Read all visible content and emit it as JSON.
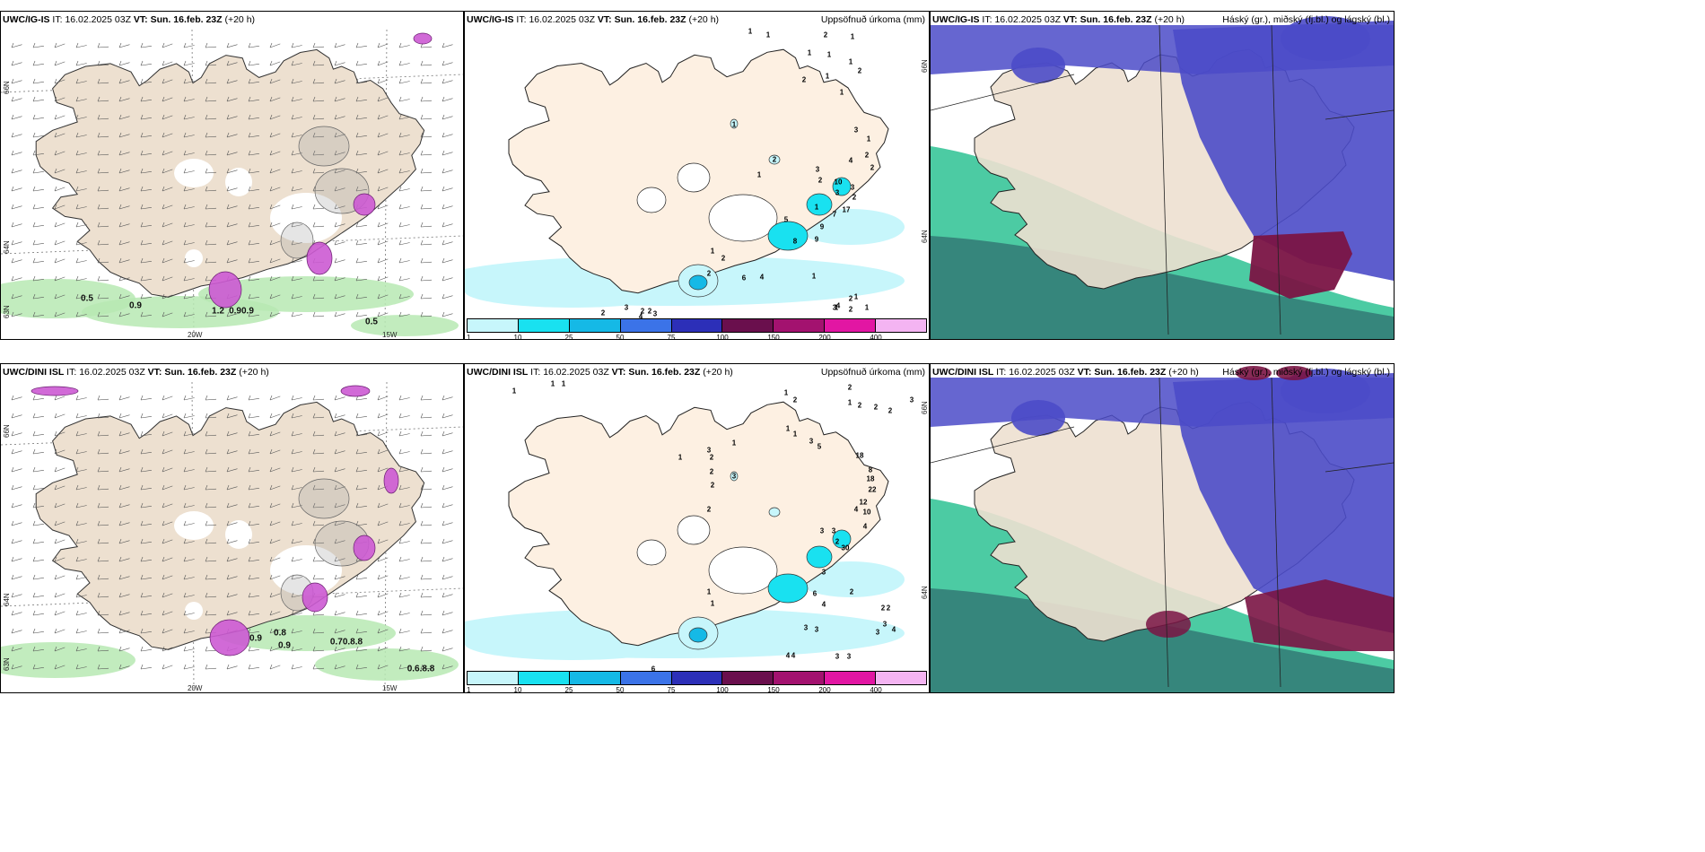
{
  "panels": [
    {
      "id": "p1",
      "model": "UWC/IG-IS",
      "it_label": "IT:",
      "it_value": "16.02.2025 03Z",
      "vt_label": "VT:",
      "vt_value": "Sun. 16.feb. 23Z",
      "lead": "(+20 h)",
      "right_title": "",
      "type": "visibility",
      "lat_labels": [
        "66N",
        "64N",
        "63N"
      ],
      "lon_labels": [
        "20W",
        "15W"
      ],
      "values": [
        "0.5",
        "0.9",
        "1.2",
        "0.90.9",
        "0.5"
      ]
    },
    {
      "id": "p2",
      "model": "UWC/IG-IS",
      "it_label": "IT:",
      "it_value": "16.02.2025 03Z",
      "vt_label": "VT:",
      "vt_value": "Sun. 16.feb. 23Z",
      "lead": "(+20 h)",
      "right_title": "Uppsöfnuð úrkoma (mm)",
      "type": "precip",
      "lat_labels": [
        "66N",
        "64N"
      ],
      "values": [
        "1",
        "1",
        "2",
        "1",
        "1",
        "1",
        "1",
        "2",
        "2",
        "1",
        "1",
        "1",
        "2",
        "1",
        "3",
        "4",
        "3",
        "2",
        "1",
        "2",
        "2",
        "10",
        "3",
        "1",
        "3",
        "2",
        "17",
        "7",
        "9",
        "9",
        "2",
        "1",
        "2",
        "6",
        "5",
        "8",
        "4",
        "1",
        "1",
        "1",
        "3",
        "2",
        "1",
        "2",
        "4",
        "3",
        "2",
        "2",
        "2",
        "4",
        "3"
      ]
    },
    {
      "id": "p3",
      "model": "UWC/IG-IS",
      "it_label": "IT:",
      "it_value": "16.02.2025 03Z",
      "vt_label": "VT:",
      "vt_value": "Sun. 16.feb. 23Z",
      "lead": "(+20 h)",
      "right_title": "Háský (gr.), miðský (fj.bl.) og lágský (bl.)",
      "type": "clouds"
    },
    {
      "id": "p4",
      "model": "UWC/DINI ISL",
      "it_label": "IT:",
      "it_value": "16.02.2025 03Z",
      "vt_label": "VT:",
      "vt_value": "Sun. 16.feb. 23Z",
      "lead": "(+20 h)",
      "right_title": "",
      "type": "visibility",
      "lat_labels": [
        "66N",
        "64N",
        "63N"
      ],
      "lon_labels": [
        "20W",
        "15W"
      ],
      "values": [
        "0.9",
        "0.9",
        "0.8",
        "0.70.8.8",
        "0.6.8.8"
      ]
    },
    {
      "id": "p5",
      "model": "UWC/DINI ISL",
      "it_label": "IT:",
      "it_value": "16.02.2025 03Z",
      "vt_label": "VT:",
      "vt_value": "Sun. 16.feb. 23Z",
      "lead": "(+20 h)",
      "right_title": "Uppsöfnuð úrkoma (mm)",
      "type": "precip",
      "lat_labels": [
        "66N",
        "64N"
      ],
      "values": [
        "1",
        "1",
        "1",
        "1",
        "2",
        "2",
        "1",
        "2",
        "2",
        "2",
        "3",
        "1",
        "3",
        "2",
        "2",
        "3",
        "1",
        "1",
        "3",
        "5",
        "18",
        "2",
        "1",
        "2",
        "8",
        "18",
        "22",
        "3",
        "2",
        "4",
        "12",
        "10",
        "4",
        "3",
        "30",
        "3",
        "6",
        "4",
        "1",
        "1",
        "2",
        "2",
        "2",
        "3",
        "4",
        "3",
        "3",
        "3",
        "4",
        "4",
        "3",
        "3",
        "6"
      ]
    },
    {
      "id": "p6",
      "model": "UWC/DINI ISL",
      "it_label": "IT:",
      "it_value": "16.02.2025 03Z",
      "vt_label": "VT:",
      "vt_value": "Sun. 16.feb. 23Z",
      "lead": "(+20 h)",
      "right_title": "Háský (gr.), miðský (fj.bl.) og lágský (bl.)",
      "type": "clouds"
    }
  ],
  "colorbar": {
    "levels": [
      "1",
      "10",
      "25",
      "50",
      "75",
      "100",
      "150",
      "200",
      "400"
    ],
    "colors": [
      "#c7f6fb",
      "#19e1f0",
      "#15b9e6",
      "#3b73e8",
      "#2c2fb8",
      "#6a0f4d",
      "#a3126f",
      "#e216a3",
      "#f4b4f2"
    ]
  },
  "colors": {
    "land": "#ede0d0",
    "land_precip": "#fdf0e2",
    "vis_green": "#b7e9b3",
    "vis_magenta": "#cc5ad3",
    "cloud_high": "#1fbe8c",
    "cloud_mid": "#4b4bc8",
    "cloud_low": "#7a1444",
    "sea_white": "#ffffff"
  }
}
